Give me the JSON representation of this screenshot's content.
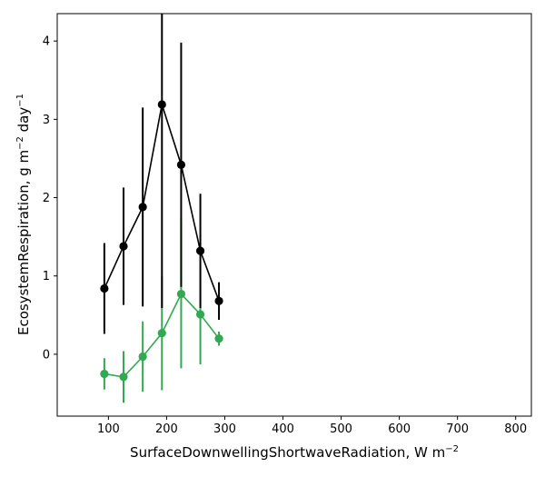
{
  "chart_data": {
    "type": "scatter",
    "xlabel": {
      "text": "SurfaceDownwellingShortwaveRadiation,  W m",
      "sup": "−2"
    },
    "ylabel": {
      "parts": [
        "EcosystemRespiration,  g m",
        "−2",
        " day",
        "−1"
      ]
    },
    "xlim": [
      12,
      827
    ],
    "ylim": [
      -0.79,
      4.35
    ],
    "xticks": [
      100,
      200,
      300,
      400,
      500,
      600,
      700,
      800
    ],
    "yticks": [
      0,
      1,
      2,
      3,
      4
    ],
    "grid": false,
    "series": [
      {
        "color": "#000000",
        "points": [
          {
            "x": 93,
            "y": 0.84,
            "err": 0.58
          },
          {
            "x": 126,
            "y": 1.38,
            "err": 0.75
          },
          {
            "x": 159,
            "y": 1.88,
            "err": 1.27
          },
          {
            "x": 192,
            "y": 3.19,
            "err": 2.6
          },
          {
            "x": 225,
            "y": 2.42,
            "err": 1.56
          },
          {
            "x": 258,
            "y": 1.32,
            "err": 0.73
          },
          {
            "x": 290,
            "y": 0.68,
            "err": 0.24
          }
        ]
      },
      {
        "color": "#33a852",
        "points": [
          {
            "x": 93,
            "y": -0.25,
            "err": 0.2
          },
          {
            "x": 126,
            "y": -0.29,
            "err": 0.33
          },
          {
            "x": 159,
            "y": -0.03,
            "err": 0.45
          },
          {
            "x": 192,
            "y": 0.27,
            "err": 0.73
          },
          {
            "x": 225,
            "y": 0.77,
            "err": 0.95
          },
          {
            "x": 258,
            "y": 0.51,
            "err": 0.64
          },
          {
            "x": 290,
            "y": 0.2,
            "err": 0.09
          }
        ]
      }
    ]
  }
}
